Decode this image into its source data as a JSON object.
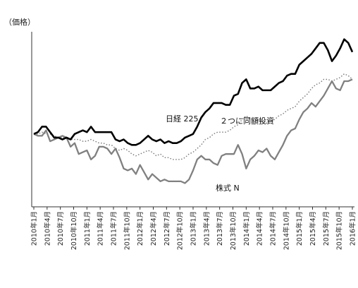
{
  "chart_data": {
    "type": "line",
    "title": "",
    "xlabel": "",
    "ylabel": "（価格）",
    "x_tick_labels": [
      "2010年1月",
      "2010年4月",
      "2010年7月",
      "2010年10月",
      "2011年1月",
      "2011年4月",
      "2011年7月",
      "2011年10月",
      "2012年1月",
      "2012年4月",
      "2012年7月",
      "2012年10月",
      "2013年1月",
      "2013年4月",
      "2013年7月",
      "2013年10月",
      "2014年1月",
      "2014年4月",
      "2014年7月",
      "2014年10月",
      "2015年1月",
      "2015年4月",
      "2015年7月",
      "2015年10月",
      "2016年1月"
    ],
    "y_ticks_shown": false,
    "grid": false,
    "series": [
      {
        "name": "日経 225",
        "label_position": "above-middle",
        "color": "#000000",
        "style": "solid",
        "values": [
          100,
          101,
          104,
          104,
          101,
          98,
          98,
          97,
          98,
          97,
          100,
          101,
          102,
          101,
          104,
          101,
          101,
          101,
          101,
          101,
          97,
          96,
          97,
          95,
          94,
          94,
          95,
          97,
          99,
          97,
          96,
          97,
          95,
          96,
          95,
          95,
          96,
          98,
          99,
          100,
          104,
          109,
          112,
          114,
          117,
          117,
          117,
          116,
          116,
          121,
          122,
          128,
          130,
          125,
          125,
          126,
          124,
          124,
          124,
          126,
          128,
          129,
          132,
          133,
          133,
          138,
          140,
          142,
          144,
          147,
          150,
          150,
          146,
          140,
          143,
          147,
          152,
          150,
          145
        ]
      },
      {
        "name": "２つに同額投資",
        "label_position": "right-middle",
        "color": "#777777",
        "style": "dotted",
        "values": [
          100,
          100,
          101,
          100,
          100,
          99,
          98,
          98,
          98,
          97,
          97,
          97,
          96,
          96,
          97,
          96,
          95,
          95,
          94,
          94,
          92,
          91,
          92,
          91,
          89,
          88,
          89,
          90,
          91,
          90,
          88,
          89,
          87,
          87,
          86,
          86,
          86,
          87,
          89,
          90,
          92,
          94,
          97,
          98,
          100,
          101,
          101,
          101,
          102,
          104,
          105,
          108,
          110,
          108,
          107,
          108,
          106,
          106,
          107,
          108,
          110,
          111,
          113,
          114,
          115,
          118,
          120,
          122,
          125,
          127,
          128,
          130,
          130,
          129,
          130,
          131,
          133,
          132,
          130
        ]
      },
      {
        "name": "株式 N",
        "label_position": "below-middle",
        "color": "#808080",
        "style": "solid",
        "values": [
          100,
          99,
          99,
          102,
          96,
          97,
          98,
          99,
          98,
          93,
          95,
          89,
          90,
          91,
          86,
          88,
          93,
          93,
          92,
          89,
          92,
          87,
          81,
          80,
          81,
          78,
          83,
          79,
          75,
          78,
          76,
          74,
          75,
          74,
          74,
          74,
          74,
          73,
          75,
          80,
          86,
          88,
          86,
          86,
          84,
          83,
          88,
          89,
          89,
          89,
          94,
          89,
          81,
          86,
          88,
          91,
          90,
          92,
          88,
          86,
          90,
          94,
          99,
          102,
          103,
          108,
          112,
          114,
          117,
          115,
          118,
          121,
          125,
          129,
          125,
          124,
          129,
          129,
          130
        ]
      }
    ]
  }
}
